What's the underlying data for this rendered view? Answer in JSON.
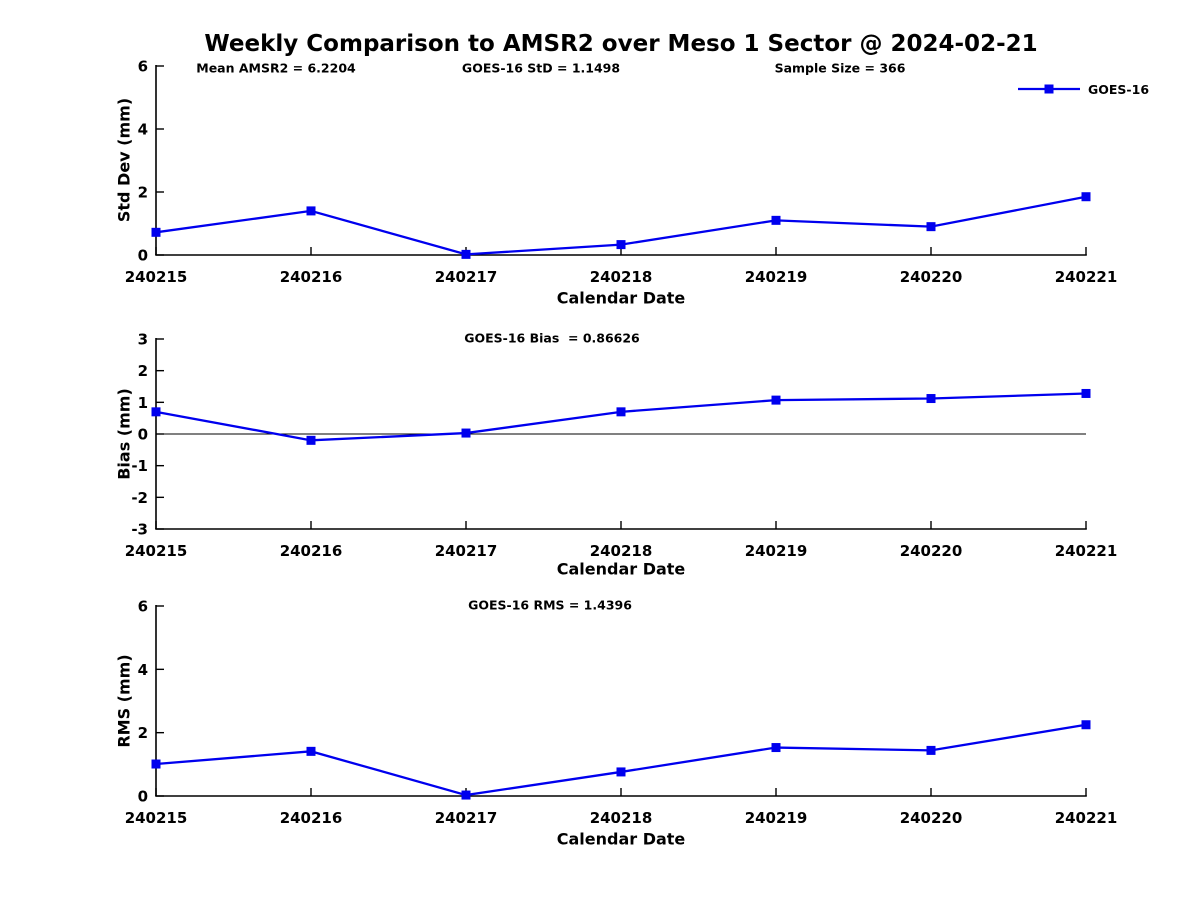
{
  "figure": {
    "title": "Weekly Comparison to AMSR2 over Meso 1 Sector @ 2024-02-21",
    "background": "#ffffff",
    "axis_color": "#000000",
    "text_color": "#000000"
  },
  "legend": {
    "label": "GOES-16",
    "color": "#0000EE",
    "marker": "square",
    "position": "top-right"
  },
  "chart_data": [
    {
      "type": "line",
      "title": "Weekly Comparison to AMSR2 over Meso 1 Sector @ 2024-02-21",
      "annotations": [
        "Mean AMSR2 = 6.2204",
        "GOES-16 StD = 1.1498",
        "Sample Size = 366"
      ],
      "categories": [
        "240215",
        "240216",
        "240217",
        "240218",
        "240219",
        "240220",
        "240221"
      ],
      "series": [
        {
          "name": "GOES-16",
          "color": "#0000EE",
          "marker": "square",
          "values": [
            0.72,
            1.4,
            0.02,
            0.33,
            1.1,
            0.9,
            1.85
          ]
        }
      ],
      "xlabel": "Calendar Date",
      "ylabel": "Std Dev (mm)",
      "ylim": [
        0,
        6
      ],
      "yticks": [
        0,
        2,
        4,
        6
      ],
      "grid": false,
      "zero_line": false,
      "legend_entries": [
        "GOES-16"
      ]
    },
    {
      "type": "line",
      "annotations": [
        "GOES-16 Bias  = 0.86626"
      ],
      "categories": [
        "240215",
        "240216",
        "240217",
        "240218",
        "240219",
        "240220",
        "240221"
      ],
      "series": [
        {
          "name": "GOES-16",
          "color": "#0000EE",
          "marker": "square",
          "values": [
            0.7,
            -0.2,
            0.03,
            0.7,
            1.07,
            1.12,
            1.28
          ]
        }
      ],
      "xlabel": "Calendar Date",
      "ylabel": "Bias (mm)",
      "ylim": [
        -3,
        3
      ],
      "yticks": [
        -3,
        -2,
        -1,
        0,
        1,
        2,
        3
      ],
      "grid": false,
      "zero_line": true
    },
    {
      "type": "line",
      "annotations": [
        "GOES-16 RMS = 1.4396"
      ],
      "categories": [
        "240215",
        "240216",
        "240217",
        "240218",
        "240219",
        "240220",
        "240221"
      ],
      "series": [
        {
          "name": "GOES-16",
          "color": "#0000EE",
          "marker": "square",
          "values": [
            1.01,
            1.41,
            0.03,
            0.76,
            1.53,
            1.44,
            2.25
          ]
        }
      ],
      "xlabel": "Calendar Date",
      "ylabel": "RMS (mm)",
      "ylim": [
        0,
        6
      ],
      "yticks": [
        0,
        2,
        4,
        6
      ],
      "grid": false,
      "zero_line": false
    }
  ]
}
